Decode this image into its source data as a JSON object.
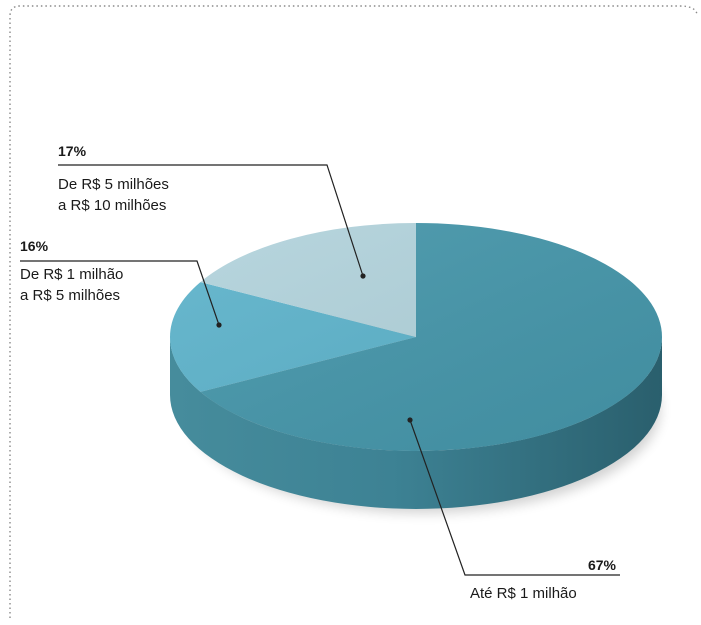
{
  "colors": {
    "slice_ate_1": "#4596aa",
    "slice_1_5": "#5db3cb",
    "slice_5_10": "#b2d3dc",
    "side": "#3b7f90",
    "frame": "#8a8a8a",
    "leader": "#222222",
    "text": "#1a1a1a"
  },
  "chart_data": {
    "type": "pie",
    "title": "",
    "unit": "%",
    "slices": [
      {
        "key": "ate_1",
        "pct_label": "67%",
        "value": 67,
        "label_lines": [
          "Até R$ 1 milhão"
        ]
      },
      {
        "key": "r1_5",
        "pct_label": "16%",
        "value": 16,
        "label_lines": [
          "De R$ 1 milhão",
          "a R$ 5 milhões"
        ]
      },
      {
        "key": "r5_10",
        "pct_label": "17%",
        "value": 17,
        "label_lines": [
          "De R$ 5 milhões",
          "a R$ 10 milhões"
        ]
      }
    ],
    "legend": "none",
    "style": "3d-pie"
  }
}
